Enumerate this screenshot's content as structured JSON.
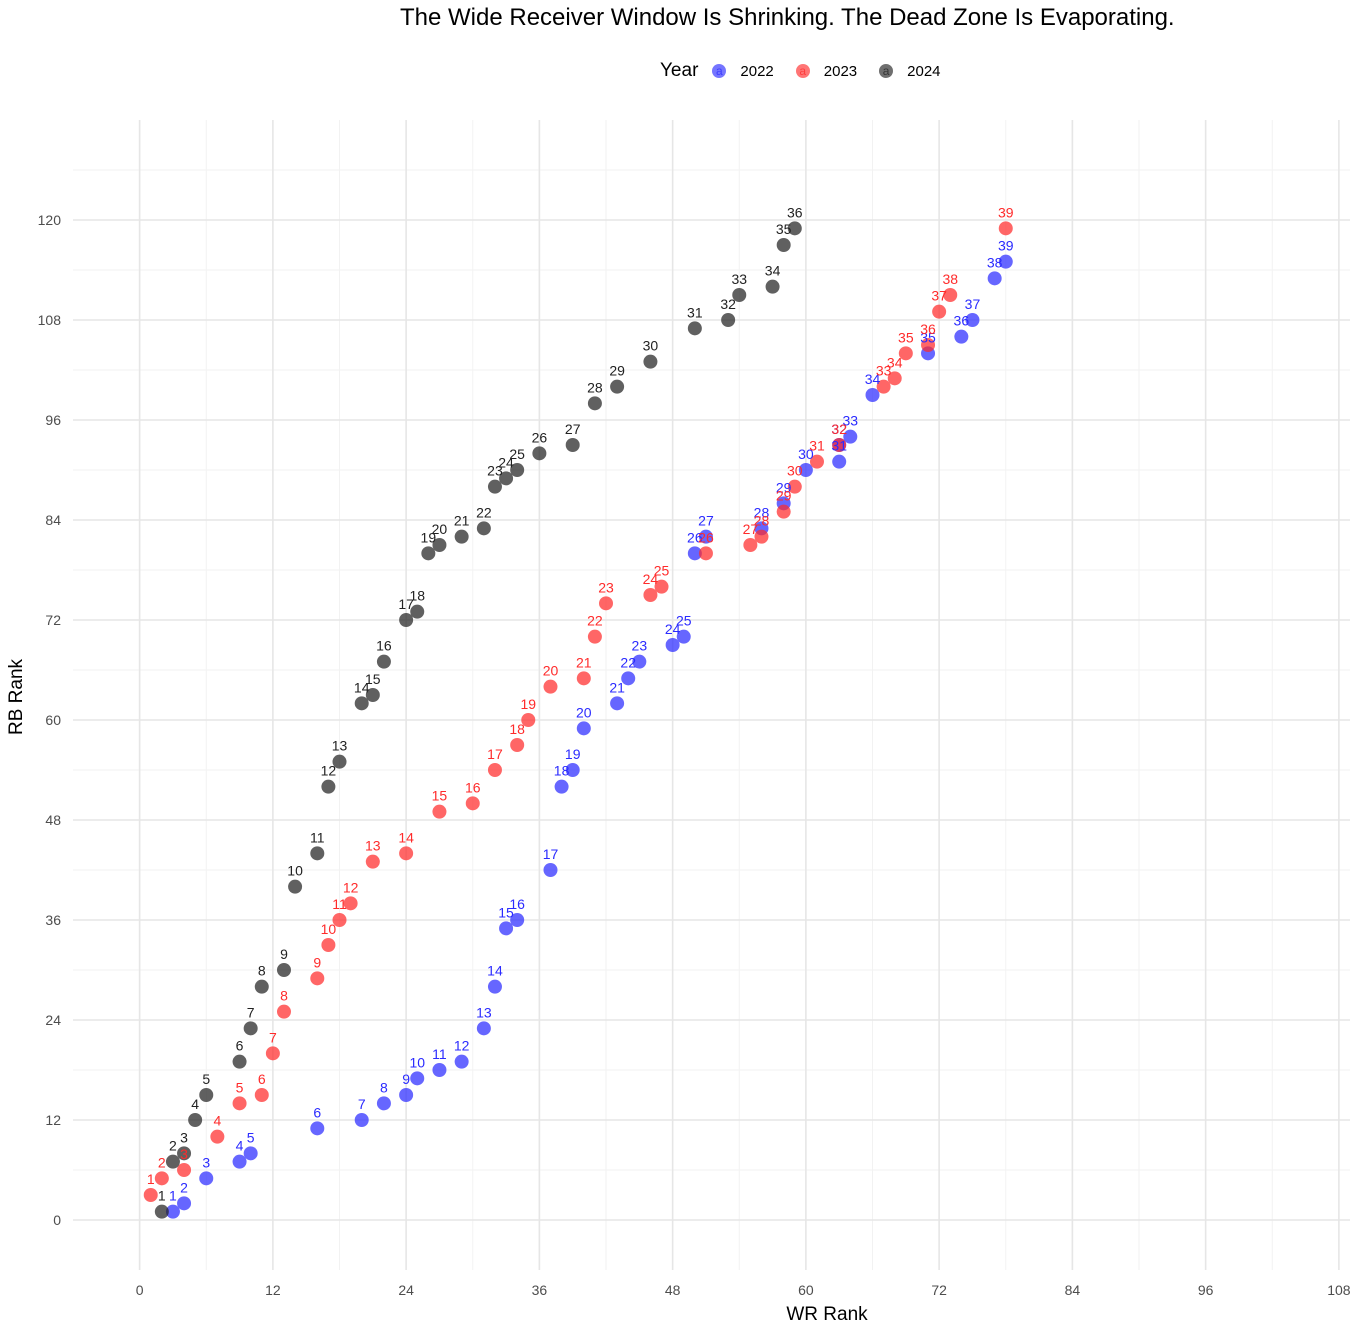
{
  "title": "The Wide Receiver Window Is Shrinking. The Dead Zone Is Evaporating.",
  "legend": {
    "title": "Year",
    "glyph": "a",
    "items": [
      {
        "label": "2022",
        "color": "#2b2bff"
      },
      {
        "label": "2023",
        "color": "#ff2b2b"
      },
      {
        "label": "2024",
        "color": "#222222"
      }
    ]
  },
  "chart_data": {
    "type": "scatter",
    "title": "The Wide Receiver Window Is Shrinking. The Dead Zone Is Evaporating.",
    "xlabel": "WR Rank",
    "ylabel": "RB Rank",
    "xlim": [
      -6,
      109
    ],
    "ylim": [
      -6,
      132
    ],
    "x_ticks": [
      0,
      12,
      24,
      36,
      48,
      60,
      72,
      84,
      96,
      108
    ],
    "y_ticks": [
      0,
      12,
      24,
      36,
      48,
      60,
      72,
      84,
      96,
      108,
      120
    ],
    "grid": true,
    "legend_position": "top",
    "point_labels": "index",
    "series": [
      {
        "name": "2022",
        "color": "#2b2bff",
        "points": [
          [
            3,
            1
          ],
          [
            4,
            2
          ],
          [
            6,
            5
          ],
          [
            9,
            7
          ],
          [
            10,
            8
          ],
          [
            16,
            11
          ],
          [
            20,
            12
          ],
          [
            22,
            14
          ],
          [
            24,
            15
          ],
          [
            25,
            17
          ],
          [
            27,
            18
          ],
          [
            29,
            19
          ],
          [
            31,
            23
          ],
          [
            32,
            28
          ],
          [
            33,
            35
          ],
          [
            34,
            36
          ],
          [
            37,
            42
          ],
          [
            38,
            52
          ],
          [
            39,
            54
          ],
          [
            40,
            59
          ],
          [
            43,
            62
          ],
          [
            44,
            65
          ],
          [
            45,
            67
          ],
          [
            48,
            69
          ],
          [
            49,
            70
          ],
          [
            50,
            80
          ],
          [
            51,
            82
          ],
          [
            56,
            83
          ],
          [
            58,
            86
          ],
          [
            60,
            90
          ],
          [
            63,
            91
          ],
          [
            63,
            93
          ],
          [
            64,
            94
          ],
          [
            66,
            99
          ],
          [
            71,
            104
          ],
          [
            74,
            106
          ],
          [
            75,
            108
          ],
          [
            77,
            113
          ],
          [
            78,
            115
          ]
        ]
      },
      {
        "name": "2023",
        "color": "#ff2b2b",
        "points": [
          [
            1,
            3
          ],
          [
            2,
            5
          ],
          [
            4,
            6
          ],
          [
            7,
            10
          ],
          [
            9,
            14
          ],
          [
            11,
            15
          ],
          [
            12,
            20
          ],
          [
            13,
            25
          ],
          [
            16,
            29
          ],
          [
            17,
            33
          ],
          [
            18,
            36
          ],
          [
            19,
            38
          ],
          [
            21,
            43
          ],
          [
            24,
            44
          ],
          [
            27,
            49
          ],
          [
            30,
            50
          ],
          [
            32,
            54
          ],
          [
            34,
            57
          ],
          [
            35,
            60
          ],
          [
            37,
            64
          ],
          [
            40,
            65
          ],
          [
            41,
            70
          ],
          [
            42,
            74
          ],
          [
            46,
            75
          ],
          [
            47,
            76
          ],
          [
            51,
            80
          ],
          [
            55,
            81
          ],
          [
            56,
            82
          ],
          [
            58,
            85
          ],
          [
            59,
            88
          ],
          [
            61,
            91
          ],
          [
            63,
            93
          ],
          [
            67,
            100
          ],
          [
            68,
            101
          ],
          [
            69,
            104
          ],
          [
            71,
            105
          ],
          [
            72,
            109
          ],
          [
            73,
            111
          ],
          [
            78,
            119
          ]
        ]
      },
      {
        "name": "2024",
        "color": "#222222",
        "points": [
          [
            2,
            1
          ],
          [
            3,
            7
          ],
          [
            4,
            8
          ],
          [
            5,
            12
          ],
          [
            6,
            15
          ],
          [
            9,
            19
          ],
          [
            10,
            23
          ],
          [
            11,
            28
          ],
          [
            13,
            30
          ],
          [
            14,
            40
          ],
          [
            16,
            44
          ],
          [
            17,
            52
          ],
          [
            18,
            55
          ],
          [
            20,
            62
          ],
          [
            21,
            63
          ],
          [
            22,
            67
          ],
          [
            24,
            72
          ],
          [
            25,
            73
          ],
          [
            26,
            80
          ],
          [
            27,
            81
          ],
          [
            29,
            82
          ],
          [
            31,
            83
          ],
          [
            32,
            88
          ],
          [
            33,
            89
          ],
          [
            34,
            90
          ],
          [
            36,
            92
          ],
          [
            39,
            93
          ],
          [
            41,
            98
          ],
          [
            43,
            100
          ],
          [
            46,
            103
          ],
          [
            50,
            107
          ],
          [
            53,
            108
          ],
          [
            54,
            111
          ],
          [
            57,
            112
          ],
          [
            58,
            117
          ],
          [
            59,
            119
          ]
        ]
      }
    ]
  }
}
